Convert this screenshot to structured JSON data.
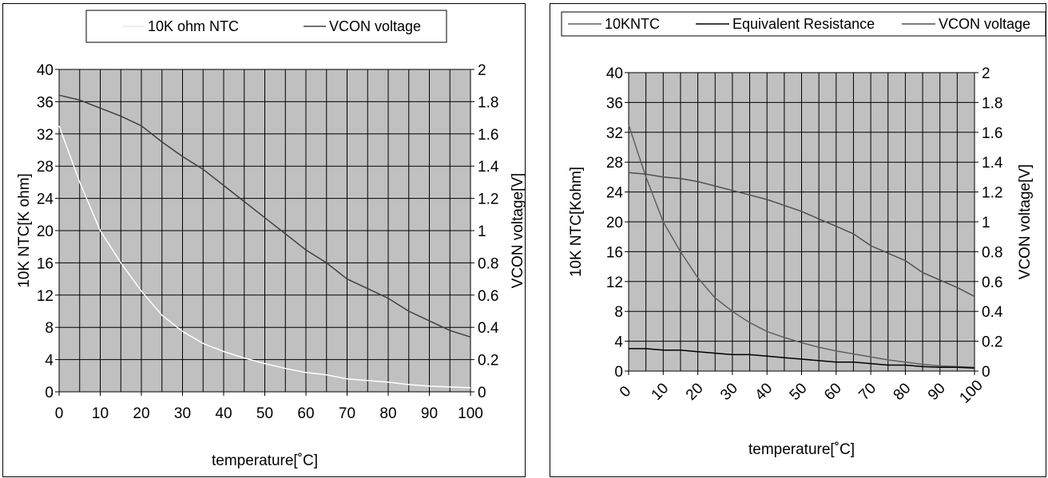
{
  "chart_data": [
    {
      "type": "line",
      "title": "",
      "xlabel": "temperature[˚C]",
      "ylabel": "10K NTC[K ohm]",
      "y2label": "VCON voltage[V]",
      "xlim": [
        0,
        100
      ],
      "ylim": [
        0,
        40
      ],
      "y2lim": [
        0,
        2
      ],
      "x_ticks": [
        "0",
        "10",
        "20",
        "30",
        "40",
        "50",
        "60",
        "70",
        "80",
        "90",
        "100"
      ],
      "y_ticks": [
        "0",
        "4",
        "8",
        "12",
        "16",
        "20",
        "24",
        "28",
        "32",
        "36",
        "40"
      ],
      "y2_ticks": [
        "0",
        "0.2",
        "0.4",
        "0.6",
        "0.8",
        "1",
        "1.2",
        "1.4",
        "1.6",
        "1.8",
        "2"
      ],
      "legend": "top",
      "grid": true,
      "plot_background": "#c0c0c0",
      "series": [
        {
          "name": "10K ohm NTC",
          "axis": "left",
          "color": "#ffffff",
          "x": [
            0,
            5,
            10,
            15,
            20,
            25,
            30,
            35,
            40,
            45,
            50,
            55,
            60,
            65,
            70,
            75,
            80,
            85,
            90,
            95,
            100
          ],
          "values": [
            33.0,
            26.0,
            20.0,
            16.0,
            12.5,
            9.5,
            7.5,
            6.0,
            5.0,
            4.2,
            3.5,
            2.9,
            2.4,
            2.1,
            1.6,
            1.4,
            1.2,
            0.9,
            0.7,
            0.6,
            0.5
          ]
        },
        {
          "name": "VCON voltage",
          "axis": "right",
          "color": "#404040",
          "x": [
            0,
            5,
            10,
            15,
            20,
            25,
            30,
            35,
            40,
            45,
            50,
            55,
            60,
            65,
            70,
            75,
            80,
            85,
            90,
            95,
            100
          ],
          "values": [
            1.84,
            1.81,
            1.76,
            1.71,
            1.65,
            1.55,
            1.46,
            1.38,
            1.28,
            1.18,
            1.08,
            0.98,
            0.88,
            0.8,
            0.7,
            0.64,
            0.58,
            0.5,
            0.44,
            0.38,
            0.34
          ]
        }
      ]
    },
    {
      "type": "line",
      "title": "",
      "xlabel": "temperature[˚C]",
      "ylabel": "10K NTC[Kohm]",
      "y2label": "VCON voltage[V]",
      "xlim": [
        0,
        100
      ],
      "ylim": [
        0,
        40
      ],
      "y2lim": [
        0,
        2
      ],
      "x_ticks": [
        "0",
        "10",
        "20",
        "30",
        "40",
        "50",
        "60",
        "70",
        "80",
        "90",
        "100"
      ],
      "y_ticks": [
        "0",
        "4",
        "8",
        "12",
        "16",
        "20",
        "24",
        "28",
        "32",
        "36",
        "40"
      ],
      "y2_ticks": [
        "0",
        "0.2",
        "0.4",
        "0.6",
        "0.8",
        "1",
        "1.2",
        "1.4",
        "1.6",
        "1.8",
        "2"
      ],
      "legend": "top",
      "grid": true,
      "plot_background": "#c0c0c0",
      "series": [
        {
          "name": "10KNTC",
          "axis": "left",
          "color": "#606060",
          "x": [
            0,
            5,
            10,
            15,
            20,
            25,
            30,
            35,
            40,
            45,
            50,
            55,
            60,
            65,
            70,
            75,
            80,
            85,
            90,
            95,
            100
          ],
          "values": [
            33.0,
            26.0,
            20.0,
            16.0,
            12.5,
            9.8,
            8.0,
            6.5,
            5.3,
            4.5,
            3.8,
            3.2,
            2.7,
            2.3,
            1.9,
            1.5,
            1.2,
            0.9,
            0.7,
            0.6,
            0.5
          ]
        },
        {
          "name": "Equivalent Resistance",
          "axis": "left",
          "color": "#000000",
          "x": [
            0,
            5,
            10,
            15,
            20,
            25,
            30,
            35,
            40,
            45,
            50,
            55,
            60,
            65,
            70,
            75,
            80,
            85,
            90,
            95,
            100
          ],
          "values": [
            3.0,
            3.0,
            2.8,
            2.8,
            2.6,
            2.4,
            2.2,
            2.2,
            2.0,
            1.8,
            1.6,
            1.4,
            1.2,
            1.2,
            1.0,
            0.8,
            0.8,
            0.6,
            0.5,
            0.5,
            0.4
          ]
        },
        {
          "name": "VCON voltage",
          "axis": "right",
          "color": "#505050",
          "x": [
            0,
            5,
            10,
            15,
            20,
            25,
            30,
            35,
            40,
            45,
            50,
            55,
            60,
            65,
            70,
            75,
            80,
            85,
            90,
            95,
            100
          ],
          "values": [
            1.33,
            1.32,
            1.3,
            1.29,
            1.27,
            1.24,
            1.21,
            1.18,
            1.15,
            1.11,
            1.07,
            1.02,
            0.97,
            0.92,
            0.84,
            0.79,
            0.74,
            0.66,
            0.61,
            0.56,
            0.5
          ]
        }
      ]
    }
  ]
}
